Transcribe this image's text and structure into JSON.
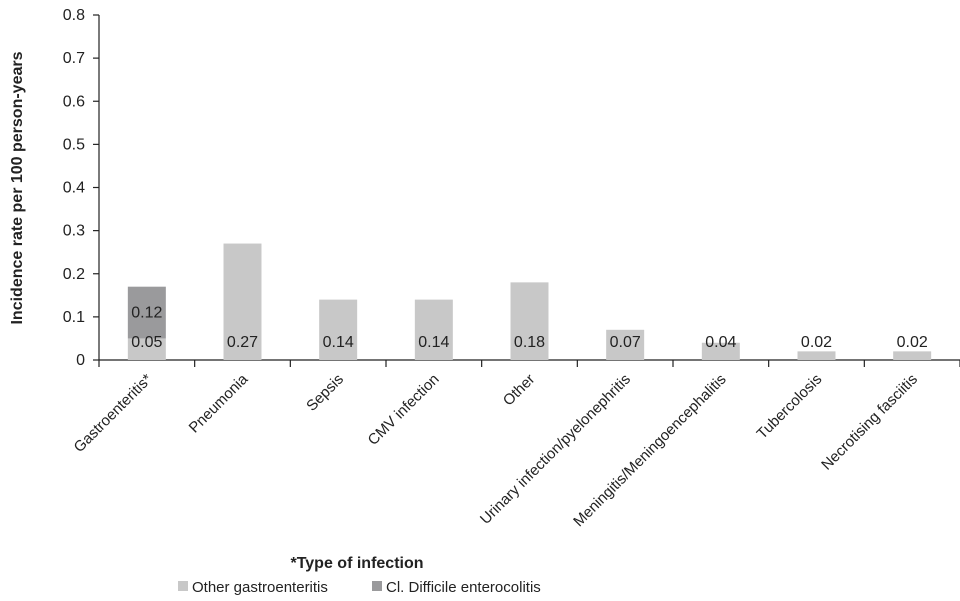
{
  "chart_data": {
    "type": "bar",
    "stacked": true,
    "title": "",
    "xlabel": "*Type of infection",
    "ylabel": "Incidence rate per 100 person-years",
    "ylim": [
      0,
      0.8
    ],
    "yticks": [
      "0",
      "0.1",
      "0.2",
      "0.3",
      "0.4",
      "0.5",
      "0.6",
      "0.7",
      "0.8"
    ],
    "ytick_values": [
      0,
      0.1,
      0.2,
      0.3,
      0.4,
      0.5,
      0.6,
      0.7,
      0.8
    ],
    "grid": false,
    "legend_position": "bottom",
    "categories": [
      "Gastroenteritis*",
      "Pneumonia",
      "Sepsis",
      "CMV infection",
      "Other",
      "Urinary infection/pyelonephritis",
      "Meningitis/Meningoencephalitis",
      "Tubercolosis",
      "Necrotising fasciitis"
    ],
    "series": [
      {
        "name": "Other gastroenteritis",
        "color": "#c8c8c8",
        "values": [
          0.05,
          0.27,
          0.14,
          0.14,
          0.18,
          0.07,
          0.04,
          0.02,
          0.02
        ],
        "labels": [
          "0.05",
          "0.27",
          "0.14",
          "0.14",
          "0.18",
          "0.07",
          "0.04",
          "0.02",
          "0.02"
        ]
      },
      {
        "name": "Cl. Difficile enterocolitis",
        "color": "#9a9a9c",
        "values": [
          0.12,
          0,
          0,
          0,
          0,
          0,
          0,
          0,
          0
        ],
        "labels": [
          "0.12",
          "",
          "",
          "",
          "",
          "",
          "",
          "",
          ""
        ]
      }
    ]
  }
}
